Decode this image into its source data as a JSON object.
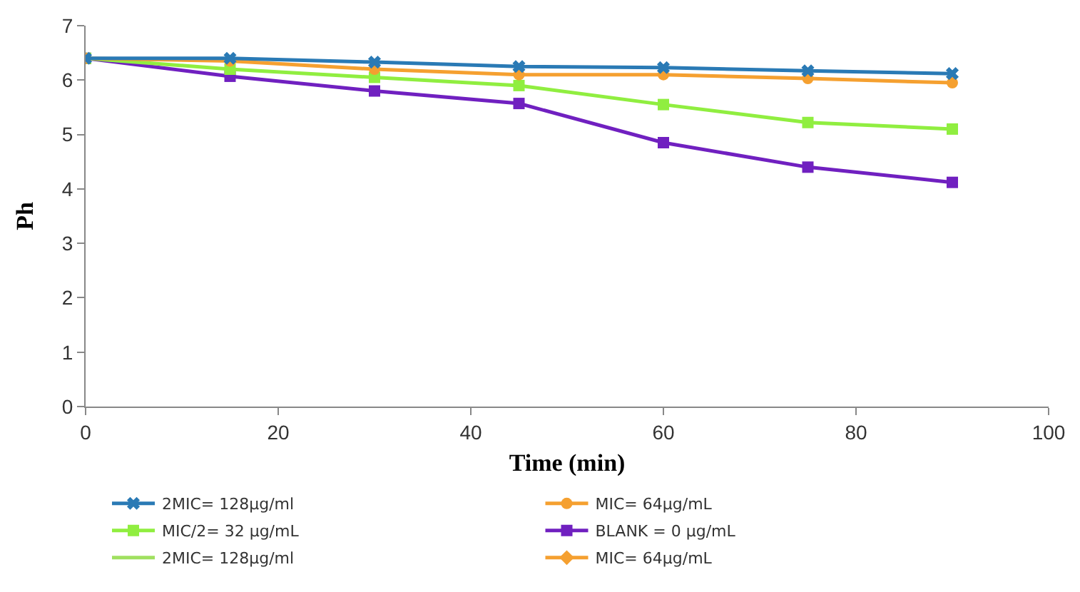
{
  "chart_data": {
    "type": "line",
    "xlabel": "Time (min)",
    "ylabel": "Ph",
    "x": [
      0,
      15,
      30,
      45,
      60,
      75,
      90
    ],
    "xlim": [
      0,
      100
    ],
    "xticks": [
      0,
      20,
      40,
      60,
      80,
      100
    ],
    "ylim": [
      0,
      7
    ],
    "yticks": [
      0,
      1,
      2,
      3,
      4,
      5,
      6,
      7
    ],
    "legend": "bottom",
    "series": [
      {
        "name": "2MIC= 128µg/ml",
        "color": "#2a7ab5",
        "marker": "cross",
        "values": [
          6.4,
          6.4,
          6.33,
          6.25,
          6.23,
          6.17,
          6.12
        ]
      },
      {
        "name": "MIC= 64µg/mL",
        "color": "#f5a030",
        "marker": "circle",
        "values": [
          6.4,
          6.35,
          6.2,
          6.1,
          6.1,
          6.03,
          5.95
        ]
      },
      {
        "name": "MIC/2= 32 µg/mL",
        "color": "#90ee40",
        "marker": "square",
        "values": [
          6.4,
          6.2,
          6.05,
          5.9,
          5.55,
          5.22,
          5.1
        ]
      },
      {
        "name": "BLANK = 0 µg/mL",
        "color": "#7020c0",
        "marker": "square",
        "values": [
          6.4,
          6.07,
          5.8,
          5.57,
          4.85,
          4.4,
          4.12
        ]
      },
      {
        "name": "2MIC= 128µg/ml",
        "color": "#a0e060",
        "marker": "none",
        "values": [
          null,
          null,
          null,
          null,
          null,
          null,
          null
        ]
      },
      {
        "name": "MIC= 64µg/mL",
        "color": "#f5a030",
        "marker": "diamond",
        "values": [
          null,
          null,
          null,
          null,
          null,
          null,
          null
        ]
      }
    ]
  }
}
